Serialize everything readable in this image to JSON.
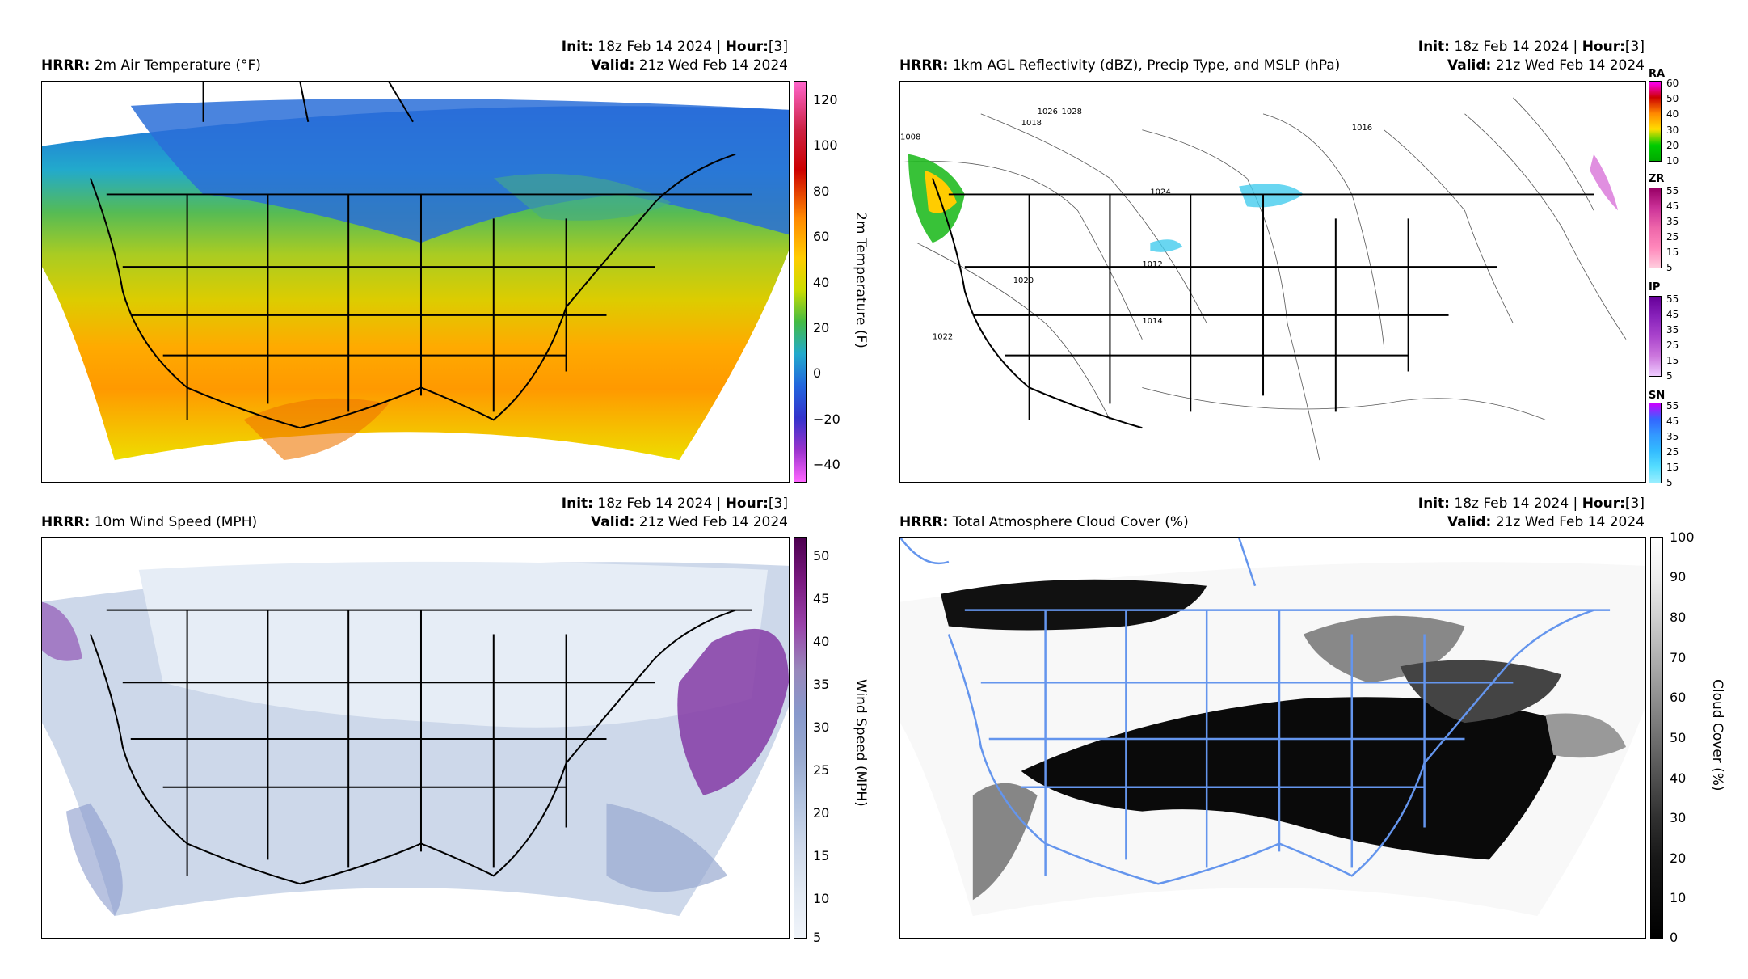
{
  "panels": [
    {
      "model": "HRRR",
      "title": "2m Air Temperature (°F)",
      "init_label": "Init",
      "init_value": "18z Feb 14 2024",
      "hour_label": "Hour",
      "hour_value": "[3]",
      "valid_label": "Valid",
      "valid_value": "21z Wed Feb 14 2024",
      "colorbar_label": "2m Temperature (F)",
      "colorbar_ticks": [
        "120",
        "100",
        "80",
        "60",
        "40",
        "20",
        "0",
        "−20",
        "−40"
      ]
    },
    {
      "model": "HRRR",
      "title": "1km AGL Reflectivity (dBZ), Precip Type, and MSLP (hPa)",
      "init_label": "Init",
      "init_value": "18z Feb 14 2024",
      "hour_label": "Hour",
      "hour_value": "[3]",
      "valid_label": "Valid",
      "valid_value": "21z Wed Feb 14 2024",
      "precip_bars": [
        {
          "name": "RA",
          "ticks": [
            "60",
            "50",
            "40",
            "30",
            "20",
            "10"
          ],
          "colors": [
            "#ff00ff",
            "#cc0000",
            "#ff8800",
            "#ffdd00",
            "#00cc00",
            "#00aa00"
          ]
        },
        {
          "name": "ZR",
          "ticks": [
            "55",
            "45",
            "35",
            "25",
            "15",
            "5"
          ],
          "colors": [
            "#990066",
            "#cc3399",
            "#ee66aa",
            "#ff88bb",
            "#ffaacc",
            "#ffccdd"
          ]
        },
        {
          "name": "IP",
          "ticks": [
            "55",
            "45",
            "35",
            "25",
            "15",
            "5"
          ],
          "colors": [
            "#660099",
            "#8822bb",
            "#aa44cc",
            "#cc77dd",
            "#dd99ee",
            "#eeccff"
          ]
        },
        {
          "name": "SN",
          "ticks": [
            "55",
            "45",
            "35",
            "25",
            "15",
            "5"
          ],
          "colors": [
            "#cc00ff",
            "#3366ff",
            "#3399ff",
            "#33bbff",
            "#55ddff",
            "#99eeff"
          ]
        }
      ],
      "isobar_labels": [
        "1008",
        "1012",
        "1014",
        "1016",
        "1018",
        "1020",
        "1022",
        "1024",
        "1026",
        "1028"
      ]
    },
    {
      "model": "HRRR",
      "title": "10m Wind Speed (MPH)",
      "init_label": "Init",
      "init_value": "18z Feb 14 2024",
      "hour_label": "Hour",
      "hour_value": "[3]",
      "valid_label": "Valid",
      "valid_value": "21z Wed Feb 14 2024",
      "colorbar_label": "Wind Speed (MPH)",
      "colorbar_ticks": [
        "50",
        "45",
        "40",
        "35",
        "30",
        "25",
        "20",
        "15",
        "10",
        "5"
      ]
    },
    {
      "model": "HRRR",
      "title": "Total Atmosphere Cloud Cover (%)",
      "init_label": "Init",
      "init_value": "18z Feb 14 2024",
      "hour_label": "Hour",
      "hour_value": "[3]",
      "valid_label": "Valid",
      "valid_value": "21z Wed Feb 14 2024",
      "colorbar_label": "Cloud Cover (%)",
      "colorbar_ticks": [
        "100",
        "90",
        "80",
        "70",
        "60",
        "50",
        "40",
        "30",
        "20",
        "10",
        "0"
      ]
    }
  ],
  "colors": {
    "temp_ramp": [
      "#ff66cc",
      "#cc0000",
      "#ff8800",
      "#ffcc00",
      "#ccdd00",
      "#44bb44",
      "#22aacc",
      "#2266dd",
      "#3333cc",
      "#9933cc",
      "#ff66ff"
    ],
    "wind_ramp": [
      "#4d0050",
      "#7a1a80",
      "#9944aa",
      "#9988bb",
      "#8899cc",
      "#99aad0",
      "#b3c4e0",
      "#cdd8ea",
      "#e0e8f2",
      "#f0f4fa"
    ],
    "cloud_ramp": [
      "#ffffff",
      "#eeeeee",
      "#d0d0d0",
      "#b0b0b0",
      "#909090",
      "#707070",
      "#505050",
      "#303030",
      "#181818",
      "#000000"
    ],
    "border_blue": "#6495ed"
  }
}
